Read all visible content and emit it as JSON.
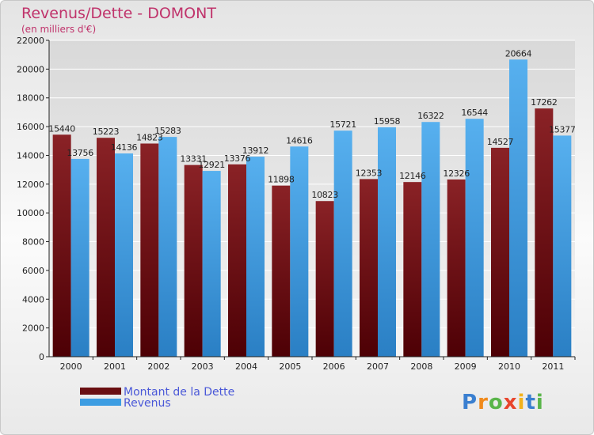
{
  "chart_data": {
    "type": "bar",
    "title": "Revenus/Dette - DOMONT",
    "subtitle": "(en milliers d'€)",
    "categories": [
      "2000",
      "2001",
      "2002",
      "2003",
      "2004",
      "2005",
      "2006",
      "2007",
      "2008",
      "2009",
      "2010",
      "2011"
    ],
    "series": [
      {
        "name": "Montant de la Dette",
        "color": "#7a1a1e",
        "values": [
          15440,
          15223,
          14823,
          13331,
          13376,
          11898,
          10823,
          12353,
          12146,
          12326,
          14527,
          17262
        ],
        "labels": [
          "15440",
          "15223",
          "14823",
          "13331",
          "13376",
          "11898",
          "10823",
          "12353",
          "12146",
          "12326",
          "14527",
          "17262"
        ]
      },
      {
        "name": "Revenus",
        "color": "#3d9de2",
        "values": [
          13756,
          14136,
          15283,
          12921,
          13912,
          14616,
          15721,
          15958,
          16322,
          16544,
          20664,
          15377
        ],
        "labels": [
          "13756",
          "14136",
          "15283",
          "12921",
          "13912",
          "14616",
          "15721",
          "15958",
          "16322",
          "16544",
          "20664",
          "15377"
        ]
      }
    ],
    "ylim": [
      0,
      22000
    ],
    "yticks": [
      0,
      2000,
      4000,
      6000,
      8000,
      10000,
      12000,
      14000,
      16000,
      18000,
      20000,
      22000
    ],
    "ytick_labels": [
      "0",
      "2000",
      "4000",
      "6000",
      "8000",
      "10000",
      "12000",
      "14000",
      "16000",
      "18000",
      "20000",
      "22000"
    ],
    "grid": true,
    "legend_position": "bottom-left"
  },
  "logo": {
    "text": "Proxiti",
    "letters": [
      "P",
      "r",
      "o",
      "x",
      "i",
      "t",
      "i"
    ]
  }
}
